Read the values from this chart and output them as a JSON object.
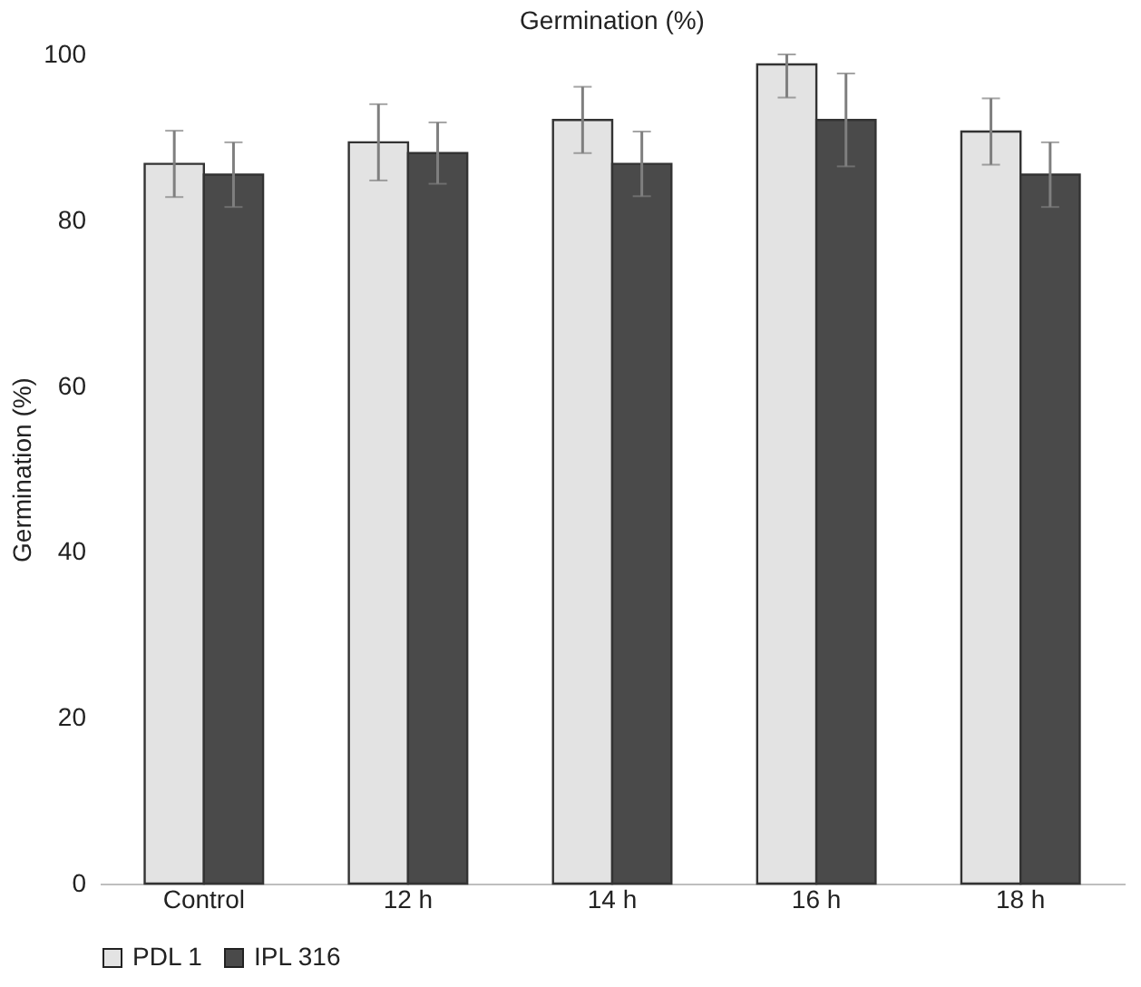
{
  "chart_data": {
    "type": "bar",
    "title": "Germination (%)",
    "ylabel": "Germination (%)",
    "categories": [
      "Control",
      "12 h",
      "14 h",
      "16 h",
      "18 h"
    ],
    "series": [
      {
        "name": "PDL 1",
        "color": "#e3e3e3",
        "values": [
          86.8,
          89.4,
          92.1,
          98.8,
          90.7
        ],
        "errors": [
          4,
          4.6,
          4,
          [
            94.8,
            100
          ],
          4
        ]
      },
      {
        "name": "IPL 316",
        "color": "#4a4a4a",
        "values": [
          85.5,
          88.1,
          86.8,
          92.1,
          85.5
        ],
        "errors": [
          3.9,
          3.7,
          3.9,
          5.6,
          3.9
        ]
      }
    ],
    "ylim": [
      0,
      100
    ],
    "yticks": [
      0,
      20,
      40,
      60,
      80,
      100
    ],
    "grid": false,
    "legend": "bottom"
  }
}
